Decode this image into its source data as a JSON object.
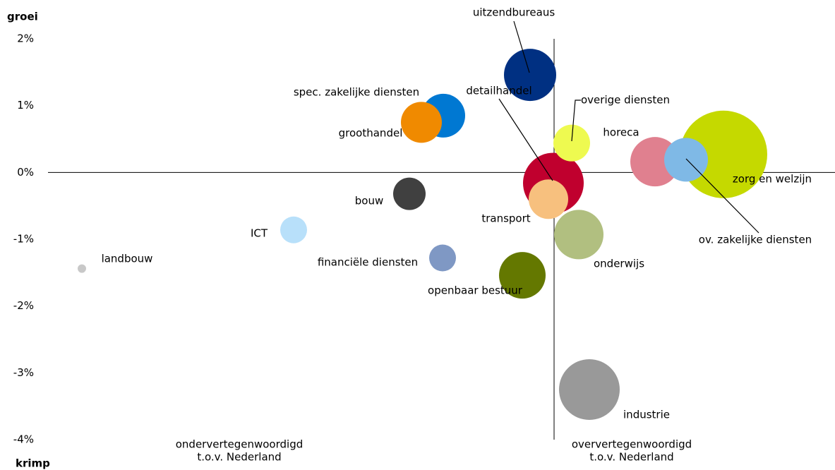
{
  "chart_data": {
    "type": "scatter",
    "y_label_top": "groei",
    "y_label_bottom": "krimp",
    "x_label_left": [
      "ondervertegenwoordigd",
      "t.o.v. Nederland"
    ],
    "x_label_right": [
      "oververtegenwoordigd",
      "t.o.v. Nederland"
    ],
    "xlim": [
      0.3,
      1.4
    ],
    "x_reference": 1,
    "ylim": [
      -4,
      2
    ],
    "yticks": [
      {
        "value": 2,
        "label": "2%"
      },
      {
        "value": 1,
        "label": "1%"
      },
      {
        "value": 0,
        "label": "0%"
      },
      {
        "value": -1,
        "label": "-1%"
      },
      {
        "value": -2,
        "label": "-2%"
      },
      {
        "value": -3,
        "label": "-3%"
      },
      {
        "value": -4,
        "label": "-4%"
      }
    ],
    "categories": [
      "uitzendbureaus",
      "spec. zakelijke diensten",
      "groothandel",
      "detailhandel",
      "overige diensten",
      "horeca",
      "zorg en welzijn",
      "ov. zakelijke diensten",
      "bouw",
      "transport",
      "ICT",
      "financiële diensten",
      "onderwijs",
      "openbaar bestuur",
      "industrie",
      "landbouw"
    ],
    "x": [
      0.966,
      0.843,
      0.812,
      0.999,
      1.025,
      1.143,
      1.24,
      1.187,
      0.795,
      0.992,
      0.631,
      0.842,
      1.035,
      0.955,
      1.05,
      0.331
    ],
    "y": [
      1.46,
      0.85,
      0.75,
      -0.16,
      0.44,
      0.16,
      0.27,
      0.19,
      -0.32,
      -0.4,
      -0.86,
      -1.28,
      -0.93,
      -1.54,
      -3.25,
      -1.44
    ],
    "sizes": [
      37,
      31,
      29,
      43,
      26,
      35,
      62,
      31,
      23,
      28,
      19,
      19,
      35,
      33,
      43,
      6
    ],
    "colors": [
      "#003082",
      "#0078d2",
      "#f08a00",
      "#c0002e",
      "#eefa50",
      "#e0808f",
      "#c5d900",
      "#7fb9e6",
      "#404040",
      "#f7c07e",
      "#b8e0fa",
      "#7f98c4",
      "#b1bf80",
      "#647800",
      "#999999",
      "#c8c8c8"
    ]
  }
}
